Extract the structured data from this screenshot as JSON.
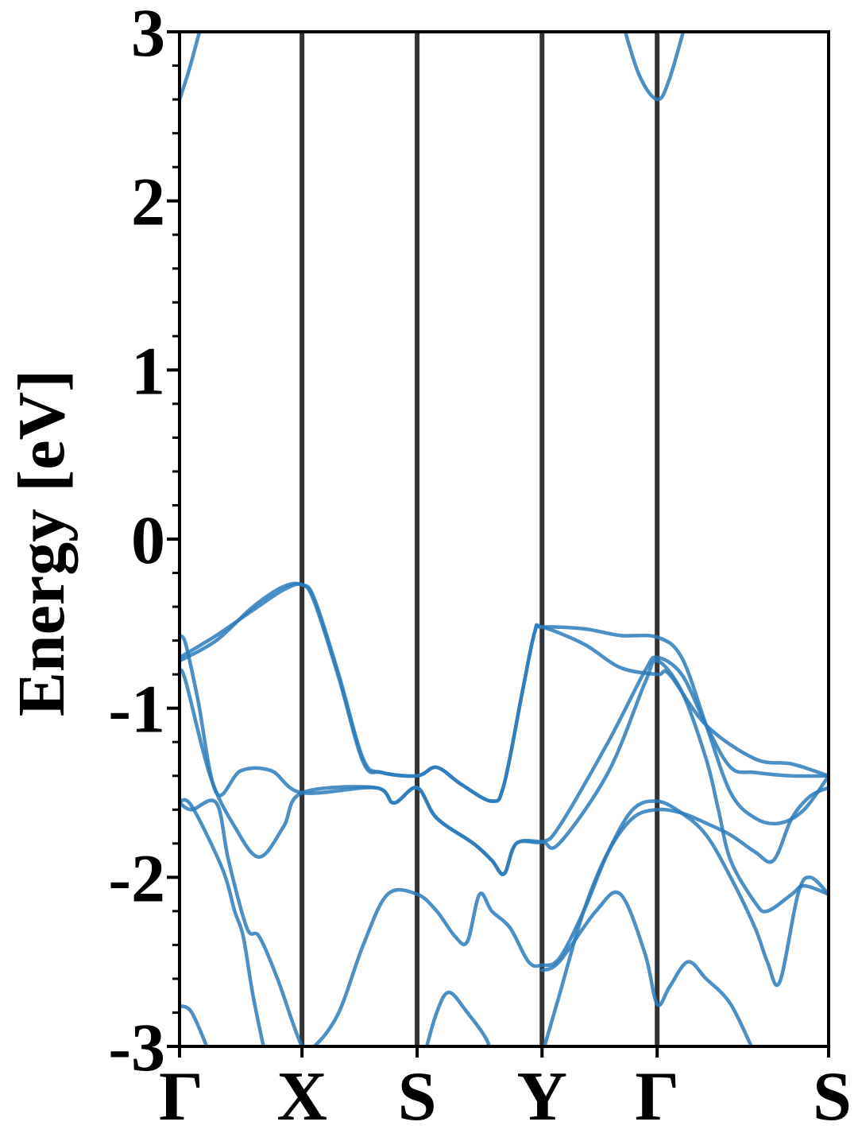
{
  "chart_data": {
    "type": "line",
    "title": "",
    "xlabel": "",
    "ylabel": "Energy [eV]",
    "ylim": [
      -3,
      3
    ],
    "xlim": [
      0,
      5.3
    ],
    "grid": false,
    "legend": "none",
    "line_color": "#2b7bba",
    "divider_color": "#333333",
    "y_ticks": [
      {
        "value": -3,
        "label": "-3"
      },
      {
        "value": -2,
        "label": "-2"
      },
      {
        "value": -1,
        "label": "-1"
      },
      {
        "value": 0,
        "label": "0"
      },
      {
        "value": 1,
        "label": "1"
      },
      {
        "value": 2,
        "label": "2"
      },
      {
        "value": 3,
        "label": "3"
      }
    ],
    "k_points": [
      {
        "x": 0.0,
        "label": "Γ"
      },
      {
        "x": 1.0,
        "label": "X"
      },
      {
        "x": 1.94,
        "label": "S"
      },
      {
        "x": 2.96,
        "label": "Y"
      },
      {
        "x": 3.9,
        "label": "Γ"
      },
      {
        "x": 5.3,
        "label": "S"
      }
    ],
    "series": [
      {
        "values": [
          [
            0,
            2.6
          ],
          [
            0.08,
            2.78
          ],
          [
            0.2,
            3.1
          ]
        ]
      },
      {
        "values": [
          [
            3.6,
            3.1
          ],
          [
            3.75,
            2.75
          ],
          [
            3.9,
            2.6
          ],
          [
            4.0,
            2.72
          ],
          [
            4.15,
            3.1
          ]
        ]
      },
      {
        "values": [
          [
            0,
            -0.72
          ],
          [
            0.3,
            -0.6
          ],
          [
            0.6,
            -0.4
          ],
          [
            0.85,
            -0.28
          ],
          [
            1.0,
            -0.27
          ],
          [
            1.1,
            -0.35
          ],
          [
            1.3,
            -0.8
          ],
          [
            1.5,
            -1.3
          ],
          [
            1.65,
            -1.38
          ],
          [
            1.94,
            -1.4
          ],
          [
            2.1,
            -1.35
          ],
          [
            2.3,
            -1.45
          ],
          [
            2.55,
            -1.55
          ],
          [
            2.65,
            -1.45
          ],
          [
            2.8,
            -0.9
          ],
          [
            2.9,
            -0.55
          ],
          [
            2.96,
            -0.52
          ],
          [
            3.3,
            -0.53
          ],
          [
            3.6,
            -0.57
          ],
          [
            3.9,
            -0.58
          ],
          [
            4.1,
            -0.7
          ],
          [
            4.3,
            -1.1
          ],
          [
            4.5,
            -1.5
          ],
          [
            4.7,
            -1.65
          ],
          [
            4.9,
            -1.68
          ],
          [
            5.1,
            -1.6
          ],
          [
            5.3,
            -1.4
          ]
        ]
      },
      {
        "values": [
          [
            0,
            -0.7
          ],
          [
            0.3,
            -0.57
          ],
          [
            0.6,
            -0.42
          ],
          [
            0.85,
            -0.3
          ],
          [
            1.0,
            -0.27
          ],
          [
            1.1,
            -0.37
          ],
          [
            1.3,
            -0.82
          ],
          [
            1.5,
            -1.32
          ],
          [
            1.65,
            -1.38
          ],
          [
            1.94,
            -1.4
          ],
          [
            2.1,
            -1.35
          ],
          [
            2.3,
            -1.45
          ],
          [
            2.55,
            -1.55
          ],
          [
            2.65,
            -1.45
          ],
          [
            2.8,
            -0.9
          ],
          [
            2.9,
            -0.55
          ],
          [
            2.96,
            -0.52
          ],
          [
            3.3,
            -0.62
          ],
          [
            3.6,
            -0.76
          ],
          [
            3.9,
            -0.8
          ],
          [
            4.0,
            -0.8
          ],
          [
            4.3,
            -1.1
          ],
          [
            4.7,
            -1.3
          ],
          [
            5.0,
            -1.33
          ],
          [
            5.3,
            -1.4
          ]
        ]
      },
      {
        "values": [
          [
            0,
            -0.57
          ],
          [
            0.05,
            -0.62
          ],
          [
            0.15,
            -0.95
          ],
          [
            0.3,
            -1.5
          ],
          [
            0.5,
            -1.37
          ],
          [
            0.75,
            -1.37
          ],
          [
            1.0,
            -1.5
          ],
          [
            1.6,
            -1.47
          ],
          [
            1.75,
            -1.56
          ],
          [
            1.94,
            -1.47
          ],
          [
            2.1,
            -1.65
          ],
          [
            2.4,
            -1.8
          ],
          [
            2.55,
            -1.9
          ],
          [
            2.65,
            -1.98
          ],
          [
            2.75,
            -1.8
          ],
          [
            2.96,
            -1.79
          ],
          [
            3.1,
            -1.7
          ],
          [
            3.5,
            -1.2
          ],
          [
            3.8,
            -0.78
          ],
          [
            3.9,
            -0.7
          ],
          [
            4.1,
            -0.8
          ],
          [
            4.3,
            -1.1
          ],
          [
            4.5,
            -1.35
          ],
          [
            4.7,
            -1.38
          ],
          [
            5.0,
            -1.4
          ],
          [
            5.3,
            -1.4
          ]
        ]
      },
      {
        "values": [
          [
            0,
            -0.78
          ],
          [
            0.05,
            -0.84
          ],
          [
            0.25,
            -1.4
          ],
          [
            0.45,
            -1.7
          ],
          [
            0.65,
            -1.88
          ],
          [
            0.85,
            -1.7
          ],
          [
            1.0,
            -1.5
          ],
          [
            1.6,
            -1.47
          ],
          [
            1.75,
            -1.56
          ],
          [
            1.94,
            -1.47
          ],
          [
            2.1,
            -1.65
          ],
          [
            2.4,
            -1.8
          ],
          [
            2.55,
            -1.9
          ],
          [
            2.65,
            -1.98
          ],
          [
            2.75,
            -1.8
          ],
          [
            2.96,
            -1.79
          ],
          [
            3.1,
            -1.8
          ],
          [
            3.5,
            -1.38
          ],
          [
            3.8,
            -0.85
          ],
          [
            3.9,
            -0.72
          ],
          [
            4.1,
            -0.9
          ],
          [
            4.3,
            -1.3
          ],
          [
            4.4,
            -1.6
          ],
          [
            4.5,
            -1.9
          ],
          [
            4.7,
            -2.15
          ],
          [
            4.8,
            -2.2
          ],
          [
            5.0,
            -2.1
          ],
          [
            5.1,
            -2.05
          ],
          [
            5.3,
            -2.1
          ]
        ]
      },
      {
        "values": [
          [
            0,
            -1.56
          ],
          [
            0.1,
            -1.6
          ],
          [
            0.3,
            -1.56
          ],
          [
            0.4,
            -1.9
          ],
          [
            0.55,
            -2.3
          ],
          [
            0.65,
            -2.35
          ],
          [
            0.8,
            -2.6
          ],
          [
            1.0,
            -3.0
          ],
          [
            1.1,
            -3.0
          ],
          [
            1.3,
            -2.8
          ],
          [
            1.5,
            -2.4
          ],
          [
            1.7,
            -2.1
          ],
          [
            1.94,
            -2.1
          ],
          [
            2.1,
            -2.2
          ],
          [
            2.25,
            -2.35
          ],
          [
            2.35,
            -2.38
          ],
          [
            2.45,
            -2.1
          ],
          [
            2.55,
            -2.2
          ],
          [
            2.7,
            -2.3
          ],
          [
            2.85,
            -2.5
          ],
          [
            2.96,
            -2.52
          ],
          [
            3.1,
            -2.48
          ],
          [
            3.3,
            -2.2
          ],
          [
            3.5,
            -1.85
          ],
          [
            3.7,
            -1.6
          ],
          [
            3.9,
            -1.55
          ],
          [
            4.1,
            -1.62
          ],
          [
            4.3,
            -1.75
          ],
          [
            4.5,
            -2.0
          ],
          [
            4.7,
            -2.3
          ],
          [
            4.8,
            -2.5
          ],
          [
            4.9,
            -2.62
          ],
          [
            5.05,
            -2.1
          ],
          [
            5.15,
            -2.0
          ],
          [
            5.3,
            -2.1
          ]
        ]
      },
      {
        "values": [
          [
            0,
            -1.55
          ],
          [
            0.1,
            -1.58
          ],
          [
            0.35,
            -1.95
          ],
          [
            0.45,
            -2.2
          ],
          [
            0.52,
            -2.35
          ],
          [
            0.6,
            -2.7
          ],
          [
            0.7,
            -3.05
          ]
        ]
      },
      {
        "values": [
          [
            0,
            -2.76
          ],
          [
            0.1,
            -2.8
          ],
          [
            0.25,
            -3.05
          ]
        ]
      },
      {
        "values": [
          [
            2.0,
            -3.05
          ],
          [
            2.1,
            -2.8
          ],
          [
            2.2,
            -2.68
          ],
          [
            2.35,
            -2.8
          ],
          [
            2.5,
            -2.95
          ],
          [
            2.55,
            -3.05
          ]
        ]
      },
      {
        "values": [
          [
            2.96,
            -3.05
          ],
          [
            3.1,
            -2.7
          ],
          [
            3.3,
            -2.2
          ],
          [
            3.5,
            -1.85
          ],
          [
            3.7,
            -1.65
          ],
          [
            3.9,
            -1.6
          ],
          [
            4.1,
            -1.62
          ],
          [
            4.3,
            -1.68
          ],
          [
            4.5,
            -1.75
          ],
          [
            4.7,
            -1.85
          ],
          [
            4.85,
            -1.9
          ],
          [
            5.0,
            -1.65
          ],
          [
            5.15,
            -1.52
          ],
          [
            5.3,
            -1.47
          ]
        ]
      },
      {
        "values": [
          [
            2.96,
            -2.55
          ],
          [
            3.1,
            -2.5
          ],
          [
            3.4,
            -2.2
          ],
          [
            3.6,
            -2.1
          ],
          [
            3.8,
            -2.45
          ],
          [
            3.9,
            -2.75
          ],
          [
            4.0,
            -2.65
          ],
          [
            4.15,
            -2.5
          ],
          [
            4.3,
            -2.6
          ],
          [
            4.5,
            -2.75
          ],
          [
            4.7,
            -3.05
          ]
        ]
      }
    ]
  }
}
